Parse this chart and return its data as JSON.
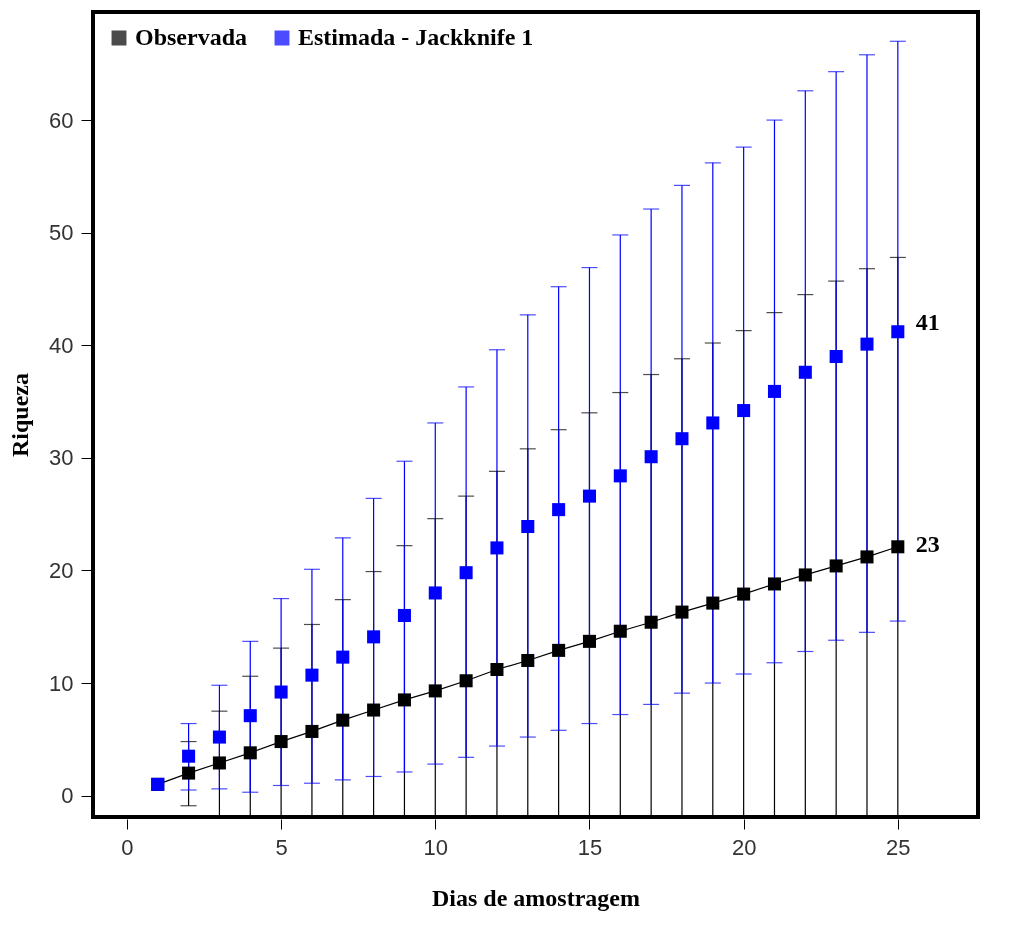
{
  "chart_data": {
    "type": "scatter",
    "xlabel": "Dias de amostragem",
    "ylabel": "Riqueza",
    "x": [
      1,
      2,
      3,
      4,
      5,
      6,
      7,
      8,
      9,
      10,
      11,
      12,
      13,
      14,
      15,
      16,
      17,
      18,
      19,
      20,
      21,
      22,
      23,
      24,
      25
    ],
    "series": [
      {
        "name": "Observada",
        "type": "line",
        "color": "#000000",
        "values": [
          1,
          2,
          2.9,
          3.8,
          4.8,
          5.7,
          6.7,
          7.6,
          8.5,
          9.3,
          10.2,
          11.2,
          12,
          12.9,
          13.7,
          14.6,
          15.4,
          16.3,
          17.1,
          17.9,
          18.8,
          19.6,
          20.4,
          21.2,
          22.1
        ],
        "errors": [
          null,
          [
            -0.9,
            4.8
          ],
          [
            -1.9,
            7.5
          ],
          [
            -1.9,
            10.6
          ],
          [
            -1.9,
            13.1
          ],
          [
            -1.9,
            15.2
          ],
          [
            -1.9,
            17.4
          ],
          [
            -1.9,
            19.9
          ],
          [
            -1.9,
            22.2
          ],
          [
            -1.9,
            24.6
          ],
          [
            -1.9,
            26.6
          ],
          [
            -1.9,
            28.8
          ],
          [
            -1.9,
            30.8
          ],
          [
            -1.9,
            32.5
          ],
          [
            -1.9,
            34
          ],
          [
            -1.9,
            35.8
          ],
          [
            -1.9,
            37.4
          ],
          [
            -1.9,
            38.8
          ],
          [
            -1.9,
            40.2
          ],
          [
            -1.9,
            41.3
          ],
          [
            -1.9,
            42.9
          ],
          [
            -1.9,
            44.5
          ],
          [
            -1.9,
            45.7
          ],
          [
            -1.9,
            46.8
          ],
          [
            -1.9,
            47.8
          ]
        ]
      },
      {
        "name": "Estimada - Jackknife 1",
        "type": "scatter",
        "color": "#0000ff",
        "values": [
          1,
          3.5,
          5.2,
          7.1,
          9.2,
          10.7,
          12.3,
          14.1,
          16,
          18,
          19.8,
          22,
          23.9,
          25.4,
          26.6,
          28.4,
          30.1,
          31.7,
          33.1,
          34.2,
          35.9,
          37.6,
          39,
          40.1,
          41.2
        ],
        "errors": [
          null,
          [
            0.5,
            6.4
          ],
          [
            0.6,
            9.8
          ],
          [
            0.3,
            13.7
          ],
          [
            0.9,
            17.5
          ],
          [
            1.1,
            20.1
          ],
          [
            1.4,
            22.9
          ],
          [
            1.7,
            26.4
          ],
          [
            2.1,
            29.7
          ],
          [
            2.8,
            33.1
          ],
          [
            3.4,
            36.3
          ],
          [
            4.4,
            39.6
          ],
          [
            5.2,
            42.7
          ],
          [
            5.8,
            45.2
          ],
          [
            6.4,
            46.9
          ],
          [
            7.2,
            49.8
          ],
          [
            8.1,
            52.1
          ],
          [
            9.1,
            54.2
          ],
          [
            10,
            56.2
          ],
          [
            10.8,
            57.6
          ],
          [
            11.8,
            60
          ],
          [
            12.8,
            62.6
          ],
          [
            13.8,
            64.3
          ],
          [
            14.5,
            65.8
          ],
          [
            15.5,
            67
          ]
        ]
      }
    ],
    "annotations": [
      {
        "text": "41",
        "x": 25,
        "y": 42
      },
      {
        "text": "23",
        "x": 25,
        "y": 22.3
      }
    ],
    "xlim": [
      -1.1,
      27.6
    ],
    "xticks": [
      0,
      5,
      10,
      15,
      20,
      25
    ],
    "ylim": [
      -1.9,
      69.6
    ],
    "yticks": [
      0,
      10,
      20,
      30,
      40,
      50,
      60
    ],
    "marker": "square",
    "grid": false,
    "legend": "top left"
  }
}
